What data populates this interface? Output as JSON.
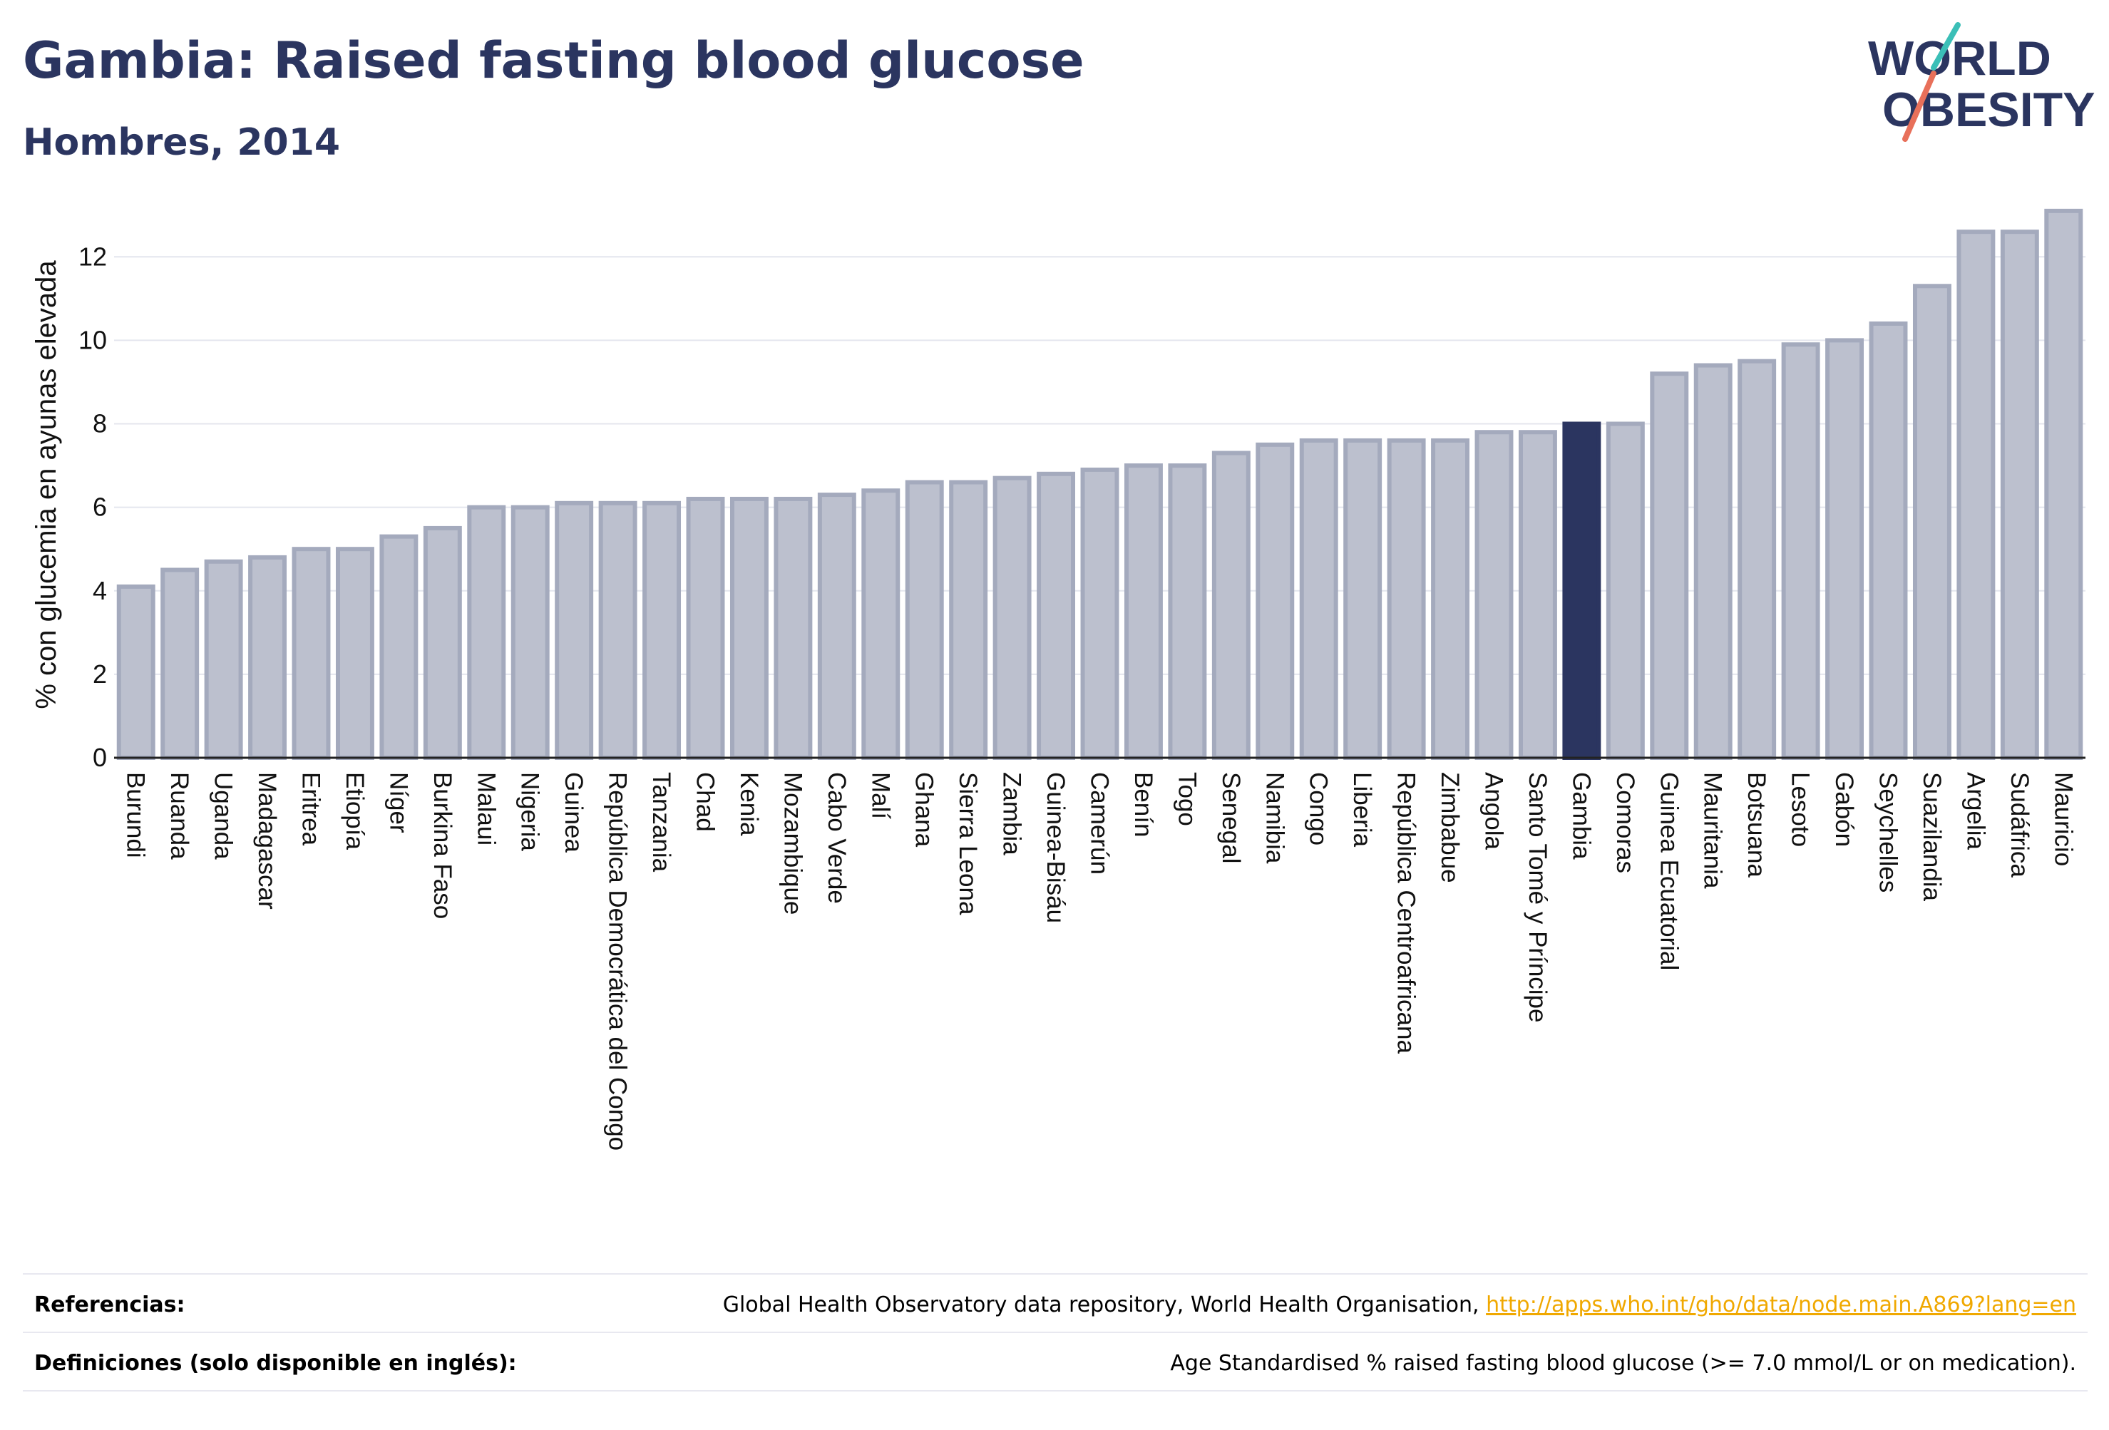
{
  "header": {
    "title": "Gambia: Raised fasting blood glucose",
    "subtitle": "Hombres, 2014"
  },
  "logo": {
    "line1": "WORLD",
    "line2": "OBESITY"
  },
  "colors": {
    "bar_fill": "#bcc0ce",
    "bar_stroke": "#a4aabd",
    "highlight": "#2b3560",
    "grid": "#e4e6ee",
    "link": "#f0a800"
  },
  "chart_data": {
    "type": "bar",
    "title": "Gambia: Raised fasting blood glucose",
    "subtitle": "Hombres, 2014",
    "xlabel": "",
    "ylabel": "% con glucemia en ayunas elevada",
    "ylim": [
      0,
      13.2
    ],
    "yticks": [
      0,
      2,
      4,
      6,
      8,
      10,
      12
    ],
    "grid": true,
    "highlight": "Gambia",
    "categories": [
      "Burundi",
      "Ruanda",
      "Uganda",
      "Madagascar",
      "Eritrea",
      "Etiopía",
      "Níger",
      "Burkina Faso",
      "Malaui",
      "Nigeria",
      "Guinea",
      "República Democrática del Congo",
      "Tanzania",
      "Chad",
      "Kenia",
      "Mozambique",
      "Cabo Verde",
      "Malí",
      "Ghana",
      "Sierra Leona",
      "Zambia",
      "Guinea-Bisáu",
      "Camerún",
      "Benín",
      "Togo",
      "Senegal",
      "Namibia",
      "Congo",
      "Liberia",
      "República Centroafricana",
      "Zimbabue",
      "Angola",
      "Santo Tomé y Príncipe",
      "Gambia",
      "Comoras",
      "Guinea Ecuatorial",
      "Mauritania",
      "Botsuana",
      "Lesoto",
      "Gabón",
      "Seychelles",
      "Suazilandia",
      "Argelia",
      "Sudáfrica",
      "Mauricio"
    ],
    "values": [
      4.1,
      4.5,
      4.7,
      4.8,
      5.0,
      5.0,
      5.3,
      5.5,
      6.0,
      6.0,
      6.1,
      6.1,
      6.1,
      6.2,
      6.2,
      6.2,
      6.3,
      6.4,
      6.6,
      6.6,
      6.7,
      6.8,
      6.9,
      7.0,
      7.0,
      7.3,
      7.5,
      7.6,
      7.6,
      7.6,
      7.6,
      7.8,
      7.8,
      8.0,
      8.0,
      9.2,
      9.4,
      9.5,
      9.9,
      10.0,
      10.4,
      11.3,
      12.6,
      12.6,
      13.1
    ]
  },
  "footer": {
    "references_label": "Referencias:",
    "references_text": "Global Health Observatory data repository, World Health Organisation,",
    "references_link": "http://apps.who.int/gho/data/node.main.A869?lang=en",
    "definitions_label": "Definiciones (solo disponible en inglés):",
    "definitions_text": "Age Standardised % raised fasting blood glucose (>= 7.0 mmol/L or on medication)."
  }
}
